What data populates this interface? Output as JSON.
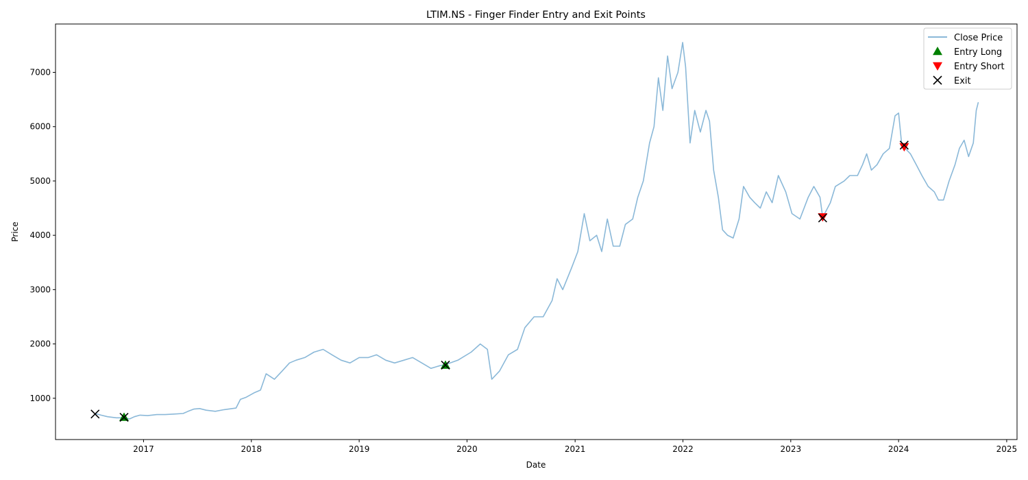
{
  "chart_data": {
    "type": "line",
    "title": "LTIM.NS - Finger Finder Entry and Exit Points",
    "xlabel": "Date",
    "ylabel": "Price",
    "xlim": [
      "2016-03-09",
      "2025-02-05"
    ],
    "ylim": [
      240,
      7890
    ],
    "x_ticks": [
      "2017-01-01",
      "2018-01-01",
      "2019-01-01",
      "2020-01-01",
      "2021-01-01",
      "2022-01-01",
      "2023-01-01",
      "2024-01-01",
      "2025-01-01"
    ],
    "x_tick_labels": [
      "2017",
      "2018",
      "2019",
      "2020",
      "2021",
      "2022",
      "2023",
      "2024",
      "2025"
    ],
    "y_ticks": [
      1000,
      2000,
      3000,
      4000,
      5000,
      6000,
      7000
    ],
    "grid": false,
    "legend_position": "top-right",
    "series": [
      {
        "name": "Close Price",
        "color": "#8ab8d8",
        "points": [
          [
            "2016-07-21",
            720
          ],
          [
            "2016-08-10",
            690
          ],
          [
            "2016-09-01",
            660
          ],
          [
            "2016-10-01",
            640
          ],
          [
            "2016-10-27",
            640
          ],
          [
            "2016-11-15",
            620
          ],
          [
            "2016-12-01",
            660
          ],
          [
            "2016-12-20",
            690
          ],
          [
            "2017-01-15",
            680
          ],
          [
            "2017-02-15",
            700
          ],
          [
            "2017-03-15",
            700
          ],
          [
            "2017-04-15",
            710
          ],
          [
            "2017-05-15",
            720
          ],
          [
            "2017-06-01",
            760
          ],
          [
            "2017-06-20",
            800
          ],
          [
            "2017-07-10",
            810
          ],
          [
            "2017-08-01",
            780
          ],
          [
            "2017-09-01",
            760
          ],
          [
            "2017-10-01",
            790
          ],
          [
            "2017-11-10",
            820
          ],
          [
            "2017-11-25",
            980
          ],
          [
            "2017-12-15",
            1020
          ],
          [
            "2018-01-10",
            1100
          ],
          [
            "2018-02-01",
            1150
          ],
          [
            "2018-02-20",
            1450
          ],
          [
            "2018-03-20",
            1350
          ],
          [
            "2018-04-15",
            1500
          ],
          [
            "2018-05-10",
            1650
          ],
          [
            "2018-06-01",
            1700
          ],
          [
            "2018-07-01",
            1750
          ],
          [
            "2018-08-01",
            1850
          ],
          [
            "2018-09-01",
            1900
          ],
          [
            "2018-10-01",
            1800
          ],
          [
            "2018-11-01",
            1700
          ],
          [
            "2018-12-01",
            1650
          ],
          [
            "2019-01-01",
            1750
          ],
          [
            "2019-02-01",
            1750
          ],
          [
            "2019-03-01",
            1800
          ],
          [
            "2019-04-01",
            1700
          ],
          [
            "2019-05-01",
            1650
          ],
          [
            "2019-06-01",
            1700
          ],
          [
            "2019-07-01",
            1750
          ],
          [
            "2019-08-01",
            1650
          ],
          [
            "2019-09-01",
            1550
          ],
          [
            "2019-10-01",
            1600
          ],
          [
            "2019-10-20",
            1620
          ],
          [
            "2019-12-01",
            1700
          ],
          [
            "2020-01-15",
            1850
          ],
          [
            "2020-02-15",
            2000
          ],
          [
            "2020-03-10",
            1900
          ],
          [
            "2020-03-25",
            1350
          ],
          [
            "2020-04-20",
            1500
          ],
          [
            "2020-05-20",
            1800
          ],
          [
            "2020-06-20",
            1900
          ],
          [
            "2020-07-15",
            2300
          ],
          [
            "2020-08-15",
            2500
          ],
          [
            "2020-09-15",
            2500
          ],
          [
            "2020-10-15",
            2800
          ],
          [
            "2020-11-01",
            3200
          ],
          [
            "2020-11-20",
            3000
          ],
          [
            "2020-12-20",
            3400
          ],
          [
            "2021-01-10",
            3700
          ],
          [
            "2021-02-01",
            4400
          ],
          [
            "2021-02-20",
            3900
          ],
          [
            "2021-03-15",
            4000
          ],
          [
            "2021-04-01",
            3700
          ],
          [
            "2021-04-20",
            4300
          ],
          [
            "2021-05-10",
            3800
          ],
          [
            "2021-06-01",
            3800
          ],
          [
            "2021-06-20",
            4200
          ],
          [
            "2021-07-15",
            4300
          ],
          [
            "2021-08-01",
            4700
          ],
          [
            "2021-08-20",
            5000
          ],
          [
            "2021-09-10",
            5700
          ],
          [
            "2021-09-25",
            6000
          ],
          [
            "2021-10-10",
            6900
          ],
          [
            "2021-10-25",
            6300
          ],
          [
            "2021-11-10",
            7300
          ],
          [
            "2021-11-25",
            6700
          ],
          [
            "2021-12-15",
            7000
          ],
          [
            "2021-12-31",
            7550
          ],
          [
            "2022-01-10",
            7100
          ],
          [
            "2022-01-25",
            5700
          ],
          [
            "2022-02-10",
            6300
          ],
          [
            "2022-03-01",
            5900
          ],
          [
            "2022-03-20",
            6300
          ],
          [
            "2022-04-01",
            6100
          ],
          [
            "2022-04-15",
            5200
          ],
          [
            "2022-05-01",
            4700
          ],
          [
            "2022-05-15",
            4100
          ],
          [
            "2022-06-01",
            4000
          ],
          [
            "2022-06-20",
            3950
          ],
          [
            "2022-07-10",
            4300
          ],
          [
            "2022-07-25",
            4900
          ],
          [
            "2022-08-15",
            4700
          ],
          [
            "2022-09-01",
            4600
          ],
          [
            "2022-09-20",
            4500
          ],
          [
            "2022-10-10",
            4800
          ],
          [
            "2022-10-30",
            4600
          ],
          [
            "2022-11-20",
            5100
          ],
          [
            "2022-12-15",
            4800
          ],
          [
            "2023-01-05",
            4400
          ],
          [
            "2023-02-01",
            4300
          ],
          [
            "2023-03-01",
            4700
          ],
          [
            "2023-03-20",
            4900
          ],
          [
            "2023-04-10",
            4700
          ],
          [
            "2023-04-19",
            4330
          ],
          [
            "2023-05-15",
            4600
          ],
          [
            "2023-06-01",
            4900
          ],
          [
            "2023-07-01",
            5000
          ],
          [
            "2023-07-20",
            5100
          ],
          [
            "2023-08-15",
            5100
          ],
          [
            "2023-09-01",
            5300
          ],
          [
            "2023-09-15",
            5500
          ],
          [
            "2023-10-01",
            5200
          ],
          [
            "2023-10-20",
            5300
          ],
          [
            "2023-11-10",
            5500
          ],
          [
            "2023-12-01",
            5600
          ],
          [
            "2023-12-20",
            6200
          ],
          [
            "2024-01-01",
            6250
          ],
          [
            "2024-01-12",
            5650
          ],
          [
            "2024-01-20",
            5620
          ],
          [
            "2024-02-10",
            5500
          ],
          [
            "2024-03-01",
            5300
          ],
          [
            "2024-03-20",
            5100
          ],
          [
            "2024-04-10",
            4900
          ],
          [
            "2024-05-01",
            4800
          ],
          [
            "2024-05-15",
            4650
          ],
          [
            "2024-06-01",
            4650
          ],
          [
            "2024-06-20",
            5000
          ],
          [
            "2024-07-10",
            5300
          ],
          [
            "2024-07-25",
            5600
          ],
          [
            "2024-08-10",
            5750
          ],
          [
            "2024-08-25",
            5450
          ],
          [
            "2024-09-10",
            5700
          ],
          [
            "2024-09-20",
            6300
          ],
          [
            "2024-09-27",
            6450
          ]
        ]
      },
      {
        "name": "Entry Long",
        "color": "#008000",
        "marker": "triangle-up",
        "points": [
          [
            "2016-10-27",
            650
          ],
          [
            "2019-10-20",
            1610
          ]
        ]
      },
      {
        "name": "Entry Short",
        "color": "#ff0000",
        "marker": "triangle-down",
        "points": [
          [
            "2023-04-19",
            4340
          ],
          [
            "2024-01-20",
            5630
          ]
        ]
      },
      {
        "name": "Exit",
        "color": "#000000",
        "marker": "x",
        "points": [
          [
            "2016-07-21",
            710
          ],
          [
            "2016-10-27",
            650
          ],
          [
            "2019-10-20",
            1610
          ],
          [
            "2023-04-19",
            4320
          ],
          [
            "2024-01-20",
            5660
          ]
        ]
      }
    ]
  }
}
